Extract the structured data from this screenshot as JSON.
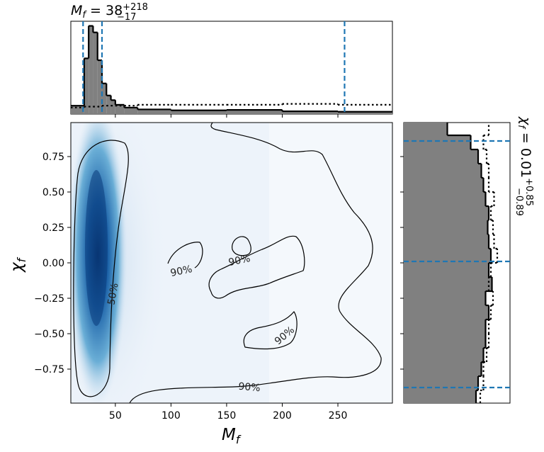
{
  "chart_data": [
    {
      "type": "histogram",
      "orientation": "vertical",
      "title": {
        "symbol": "M",
        "subscript": "f",
        "median": " = 38",
        "upper": "+218",
        "lower": "−17"
      },
      "bins": [
        10,
        22,
        26,
        30,
        34,
        38,
        42,
        46,
        50,
        58,
        70,
        100,
        150,
        200,
        250,
        299
      ],
      "series": [
        {
          "style": "filled",
          "color": "#808080",
          "values": [
            0.09,
            0.6,
            0.95,
            0.88,
            0.58,
            0.33,
            0.2,
            0.15,
            0.1,
            0.07,
            0.05,
            0.04,
            0.045,
            0.03,
            0.025
          ]
        },
        {
          "style": "dotted",
          "color": "#000000",
          "values": [
            0.07,
            0.08,
            0.08,
            0.08,
            0.08,
            0.09,
            0.09,
            0.09,
            0.09,
            0.09,
            0.1,
            0.1,
            0.1,
            0.11,
            0.1
          ]
        }
      ],
      "xlim": [
        10,
        299
      ],
      "ylim": [
        0,
        1
      ],
      "quantiles": [
        21,
        38,
        256
      ],
      "quantile_color": "#1f77b4"
    },
    {
      "type": "density",
      "xlabel": {
        "symbol": "M",
        "subscript": "f"
      },
      "ylabel": {
        "symbol": "χ",
        "subscript": "f"
      },
      "xlim": [
        10,
        299
      ],
      "ylim": [
        -0.99,
        0.99
      ],
      "xticks": [
        50,
        100,
        150,
        200,
        250
      ],
      "yticks": [
        {
          "value": -0.75,
          "label": "−0.75"
        },
        {
          "value": -0.5,
          "label": "−0.50"
        },
        {
          "value": -0.25,
          "label": "−0.25"
        },
        {
          "value": 0,
          "label": "0.00"
        },
        0.25,
        {
          "value": 0.5,
          "label": "0.50"
        },
        0.75
      ],
      "contour_labels": [
        "50%",
        "90%",
        "90%",
        "90%",
        "90%"
      ],
      "colormap": "Blues"
    },
    {
      "type": "histogram",
      "orientation": "horizontal",
      "title": {
        "symbol": "χ",
        "subscript": "f",
        "median": " = 0.01",
        "upper": "+0.85",
        "lower": "−0.89"
      },
      "bins": [
        -0.99,
        -0.9,
        -0.8,
        -0.7,
        -0.6,
        -0.5,
        -0.4,
        -0.3,
        -0.2,
        -0.1,
        0,
        0.1,
        0.2,
        0.3,
        0.4,
        0.5,
        0.6,
        0.7,
        0.8,
        0.9,
        0.99
      ],
      "series": [
        {
          "style": "filled",
          "color": "#808080",
          "values": [
            0.68,
            0.7,
            0.73,
            0.75,
            0.77,
            0.77,
            0.8,
            0.77,
            0.83,
            0.8,
            0.82,
            0.8,
            0.79,
            0.8,
            0.77,
            0.75,
            0.73,
            0.7,
            0.63,
            0.41
          ]
        },
        {
          "style": "dotted",
          "color": "#000000",
          "values": [
            0.72,
            0.75,
            0.75,
            0.78,
            0.8,
            0.8,
            0.82,
            0.84,
            0.8,
            0.82,
            0.88,
            0.85,
            0.84,
            0.82,
            0.85,
            0.8,
            0.8,
            0.78,
            0.75,
            0.8
          ]
        }
      ],
      "xlim": [
        0,
        1
      ],
      "ylim": [
        -0.99,
        0.99
      ],
      "quantiles": [
        -0.88,
        0.01,
        0.86
      ],
      "quantile_color": "#1f77b4"
    }
  ]
}
